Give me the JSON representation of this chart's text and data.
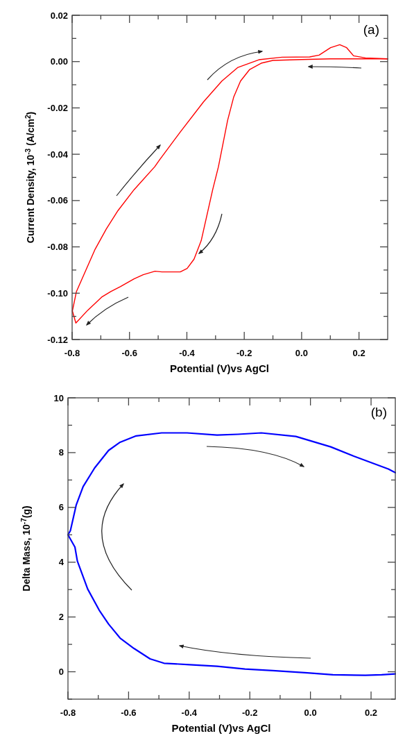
{
  "chart_data": [
    {
      "type": "line",
      "xlabel": "Potential (V)vs AgCl",
      "ylabel": "Current Density, 10$^{-3}$ (A/cm$^{2}$)",
      "annotations": [
        "(a)"
      ],
      "xlim": [
        -0.8,
        0.3
      ],
      "ylim": [
        -0.12,
        0.02
      ],
      "xticks": [
        {
          "value": -0.8,
          "label": "-0.8"
        },
        {
          "value": -0.7,
          "label": null
        },
        {
          "value": -0.6,
          "label": "-0.6"
        },
        {
          "value": -0.5,
          "label": null
        },
        {
          "value": -0.4,
          "label": "-0.4"
        },
        {
          "value": -0.3,
          "label": null
        },
        {
          "value": -0.2,
          "label": "-0.2"
        },
        {
          "value": -0.1,
          "label": null
        },
        {
          "value": 0,
          "label": "0.0"
        },
        {
          "value": 0.1,
          "label": null
        },
        {
          "value": 0.2,
          "label": "0.2"
        }
      ],
      "yticks": [
        {
          "value": -0.12,
          "label": "-0.12"
        },
        {
          "value": -0.11,
          "label": null
        },
        {
          "value": -0.1,
          "label": "-0.10"
        },
        {
          "value": -0.09,
          "label": null
        },
        {
          "value": -0.08,
          "label": "-0.08"
        },
        {
          "value": -0.07,
          "label": null
        },
        {
          "value": -0.06,
          "label": "-0.06"
        },
        {
          "value": -0.05,
          "label": null
        },
        {
          "value": -0.04,
          "label": "-0.04"
        },
        {
          "value": -0.03,
          "label": null
        },
        {
          "value": -0.02,
          "label": "-0.02"
        },
        {
          "value": -0.01,
          "label": null
        },
        {
          "value": 0,
          "label": "0.00"
        },
        {
          "value": 0.01,
          "label": null
        },
        {
          "value": 0.02,
          "label": "0.02"
        }
      ],
      "series": [
        {
          "color": "#ff0000",
          "x": [
            0.3,
            0.1,
            0,
            -0.1,
            -0.141,
            -0.181,
            -0.213,
            -0.237,
            -0.258,
            -0.274,
            -0.29,
            -0.31,
            -0.33,
            -0.35,
            -0.375,
            -0.399,
            -0.423,
            -0.487,
            -0.511,
            -0.552,
            -0.584,
            -0.632,
            -0.665,
            -0.697,
            -0.745,
            -0.787,
            -0.799
          ],
          "values": [
            0.0012,
            0.0012,
            0.0009,
            0.0005,
            -0.0007,
            -0.0034,
            -0.0084,
            -0.0154,
            -0.0254,
            -0.0354,
            -0.0454,
            -0.0553,
            -0.0663,
            -0.0773,
            -0.0853,
            -0.0893,
            -0.0908,
            -0.0908,
            -0.0905,
            -0.092,
            -0.0938,
            -0.0972,
            -0.0993,
            -0.1017,
            -0.1073,
            -0.1129,
            -0.1077
          ]
        },
        {
          "color": "#ff0000",
          "x": [
            -0.799,
            -0.785,
            -0.753,
            -0.721,
            -0.681,
            -0.64,
            -0.584,
            -0.512,
            -0.495,
            -0.423,
            -0.342,
            -0.278,
            -0.222,
            -0.149,
            -0.068,
            0.028,
            0.061,
            0.101,
            0.133,
            0.157,
            0.181,
            0.222,
            0.3
          ],
          "values": [
            -0.1077,
            -0.0993,
            -0.0903,
            -0.0813,
            -0.0723,
            -0.0643,
            -0.0553,
            -0.0454,
            -0.0424,
            -0.0304,
            -0.0174,
            -0.0084,
            -0.0025,
            0.0008,
            0.0019,
            0.002,
            0.0028,
            0.006,
            0.0073,
            0.006,
            0.0025,
            0.0016,
            0.0012
          ]
        }
      ]
    },
    {
      "type": "line",
      "xlabel": "Potential (V)vs AgCl",
      "ylabel": "Delta Mass, 10$^{-7}$(g)",
      "annotations": [
        "(b)"
      ],
      "xlim": [
        -0.8,
        0.28
      ],
      "ylim": [
        -1,
        10
      ],
      "xticks": [
        {
          "value": -0.8,
          "label": "-0.8"
        },
        {
          "value": -0.7,
          "label": null
        },
        {
          "value": -0.6,
          "label": "-0.6"
        },
        {
          "value": -0.5,
          "label": null
        },
        {
          "value": -0.4,
          "label": "-0.4"
        },
        {
          "value": -0.3,
          "label": null
        },
        {
          "value": -0.2,
          "label": "-0.2"
        },
        {
          "value": -0.1,
          "label": null
        },
        {
          "value": 0,
          "label": "0.0"
        },
        {
          "value": 0.1,
          "label": null
        },
        {
          "value": 0.2,
          "label": "0.2"
        }
      ],
      "yticks": [
        {
          "value": -1,
          "label": null
        },
        {
          "value": 0,
          "label": "0"
        },
        {
          "value": 1,
          "label": null
        },
        {
          "value": 2,
          "label": "2"
        },
        {
          "value": 3,
          "label": null
        },
        {
          "value": 4,
          "label": "4"
        },
        {
          "value": 5,
          "label": null
        },
        {
          "value": 6,
          "label": "6"
        },
        {
          "value": 7,
          "label": null
        },
        {
          "value": 8,
          "label": "8"
        },
        {
          "value": 9,
          "label": null
        },
        {
          "value": 10,
          "label": "10"
        }
      ],
      "series": [
        {
          "color": "#0000ff",
          "x": [
            0.28,
            0.257,
            0.143,
            0.067,
            -0.048,
            -0.162,
            -0.239,
            -0.308,
            -0.407,
            -0.491,
            -0.575,
            -0.628,
            -0.666,
            -0.712,
            -0.75,
            -0.773,
            -0.792,
            -0.8,
            -0.777,
            -0.769,
            -0.735,
            -0.697,
            -0.666,
            -0.628,
            -0.582,
            -0.529,
            -0.483,
            -0.399,
            -0.308,
            -0.216,
            -0.124,
            -0.01,
            0.074,
            0.181,
            0.235,
            0.28
          ],
          "values": [
            7.27,
            7.4,
            7.87,
            8.21,
            8.59,
            8.72,
            8.67,
            8.64,
            8.72,
            8.72,
            8.61,
            8.38,
            8.08,
            7.44,
            6.76,
            6.08,
            5.15,
            5.0,
            4.55,
            4.04,
            3.02,
            2.25,
            1.74,
            1.23,
            0.85,
            0.47,
            0.31,
            0.26,
            0.2,
            0.1,
            0.04,
            -0.04,
            -0.11,
            -0.13,
            -0.11,
            -0.08
          ]
        }
      ]
    }
  ]
}
